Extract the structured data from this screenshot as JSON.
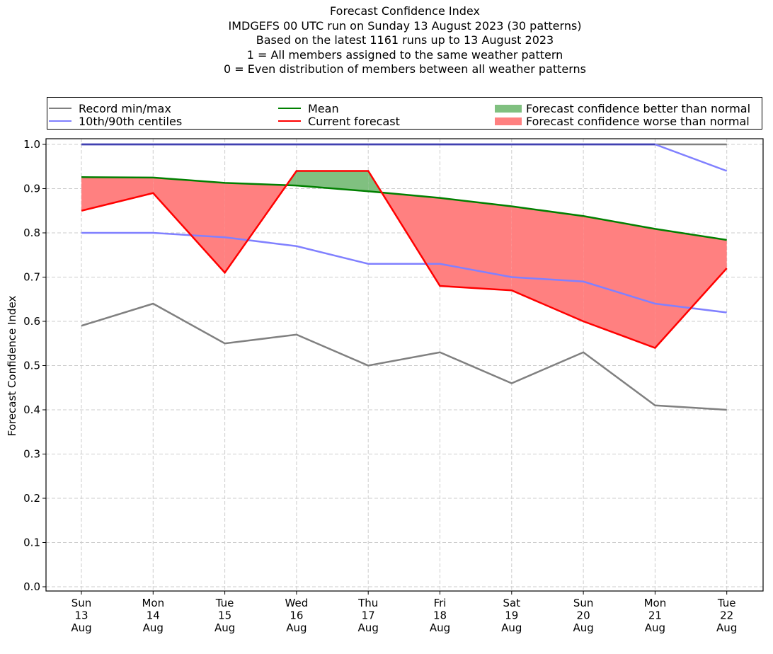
{
  "chart_data": {
    "type": "line",
    "title": "Forecast Confidence Index",
    "subtitle_lines": [
      "IMDGEFS 00 UTC run on Sunday 13 August 2023 (30 patterns)",
      "Based on the latest 1161 runs up to 13 August 2023",
      "1 = All members assigned to the same weather pattern",
      "0 = Even distribution of members between all weather patterns"
    ],
    "xlabel": "",
    "ylabel": "Forecast Confidence Index",
    "ylim": [
      0.0,
      1.0
    ],
    "yticks": [
      "0.0",
      "0.1",
      "0.2",
      "0.3",
      "0.4",
      "0.5",
      "0.6",
      "0.7",
      "0.8",
      "0.9",
      "1.0"
    ],
    "grid": true,
    "legend_placement": "top (above plot, 3 columns)",
    "categories": [
      [
        "Sun",
        "13",
        "Aug"
      ],
      [
        "Mon",
        "14",
        "Aug"
      ],
      [
        "Tue",
        "15",
        "Aug"
      ],
      [
        "Wed",
        "16",
        "Aug"
      ],
      [
        "Thu",
        "17",
        "Aug"
      ],
      [
        "Fri",
        "18",
        "Aug"
      ],
      [
        "Sat",
        "19",
        "Aug"
      ],
      [
        "Sun",
        "20",
        "Aug"
      ],
      [
        "Mon",
        "21",
        "Aug"
      ],
      [
        "Tue",
        "22",
        "Aug"
      ]
    ],
    "series": [
      {
        "name": "Record min",
        "legend": "Record min/max",
        "color": "#808080",
        "values": [
          0.59,
          0.64,
          0.55,
          0.57,
          0.5,
          0.53,
          0.46,
          0.53,
          0.41,
          0.4
        ]
      },
      {
        "name": "Record max",
        "legend": "Record min/max",
        "color": "#808080",
        "values": [
          1.0,
          1.0,
          1.0,
          1.0,
          1.0,
          1.0,
          1.0,
          1.0,
          1.0,
          1.0
        ]
      },
      {
        "name": "10th centile",
        "legend": "10th/90th centiles",
        "color": "#8080ff",
        "values": [
          0.8,
          0.8,
          0.79,
          0.77,
          0.73,
          0.73,
          0.7,
          0.69,
          0.64,
          0.62
        ]
      },
      {
        "name": "90th centile",
        "legend": "10th/90th centiles",
        "color": "#8080ff",
        "values": [
          1.0,
          1.0,
          1.0,
          1.0,
          1.0,
          1.0,
          1.0,
          1.0,
          1.0,
          0.94
        ]
      },
      {
        "name": "Mean",
        "legend": "Mean",
        "color": "#008000",
        "values": [
          0.926,
          0.925,
          0.913,
          0.907,
          0.894,
          0.879,
          0.86,
          0.838,
          0.809,
          0.784
        ]
      },
      {
        "name": "Current forecast",
        "legend": "Current forecast",
        "color": "#ff0000",
        "values": [
          0.85,
          0.89,
          0.71,
          0.94,
          0.94,
          0.68,
          0.67,
          0.6,
          0.54,
          0.72
        ]
      }
    ],
    "fills": [
      {
        "name": "Forecast confidence better than normal",
        "color": "#80c080",
        "rule": "current > mean"
      },
      {
        "name": "Forecast confidence worse than normal",
        "color": "#ff8080",
        "rule": "current < mean"
      }
    ],
    "legend": [
      {
        "label": "Record min/max",
        "kind": "line",
        "color": "#808080"
      },
      {
        "label": "10th/90th centiles",
        "kind": "line",
        "color": "#8080ff"
      },
      {
        "label": "Mean",
        "kind": "line",
        "color": "#008000"
      },
      {
        "label": "Current forecast",
        "kind": "line",
        "color": "#ff0000"
      },
      {
        "label": "Forecast confidence better than normal",
        "kind": "patch",
        "color": "#80c080"
      },
      {
        "label": "Forecast confidence worse than normal",
        "kind": "patch",
        "color": "#ff8080"
      }
    ]
  }
}
